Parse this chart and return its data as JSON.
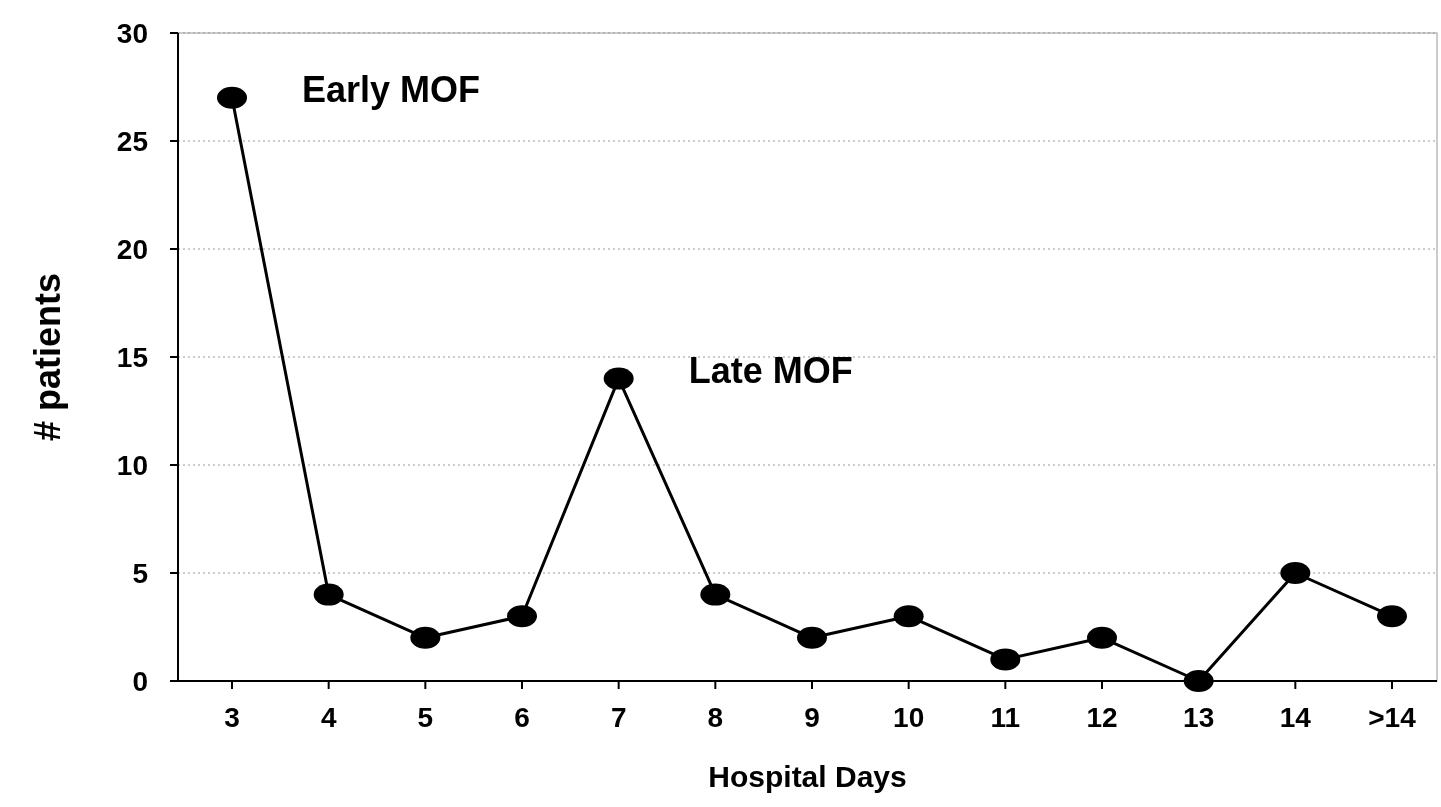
{
  "chart_data": {
    "type": "line",
    "xlabel": "Hospital Days",
    "ylabel": "# patients",
    "categories": [
      "3",
      "4",
      "5",
      "6",
      "7",
      "8",
      "9",
      "10",
      "11",
      "12",
      "13",
      "14",
      ">14"
    ],
    "series": [
      {
        "color": "#000000",
        "values": [
          27,
          4,
          2,
          3,
          14,
          4,
          2,
          3,
          1,
          2,
          0,
          5,
          3
        ]
      }
    ],
    "ylim": [
      0,
      30
    ],
    "yticks": [
      0,
      5,
      10,
      15,
      20,
      25,
      30
    ],
    "grid": "y",
    "marker": "circle",
    "line_style": "solid",
    "annotations": [
      {
        "text": "Early MOF",
        "x": "3",
        "y": 27
      },
      {
        "text": "Late MOF",
        "x": "7",
        "y": 14
      }
    ]
  }
}
